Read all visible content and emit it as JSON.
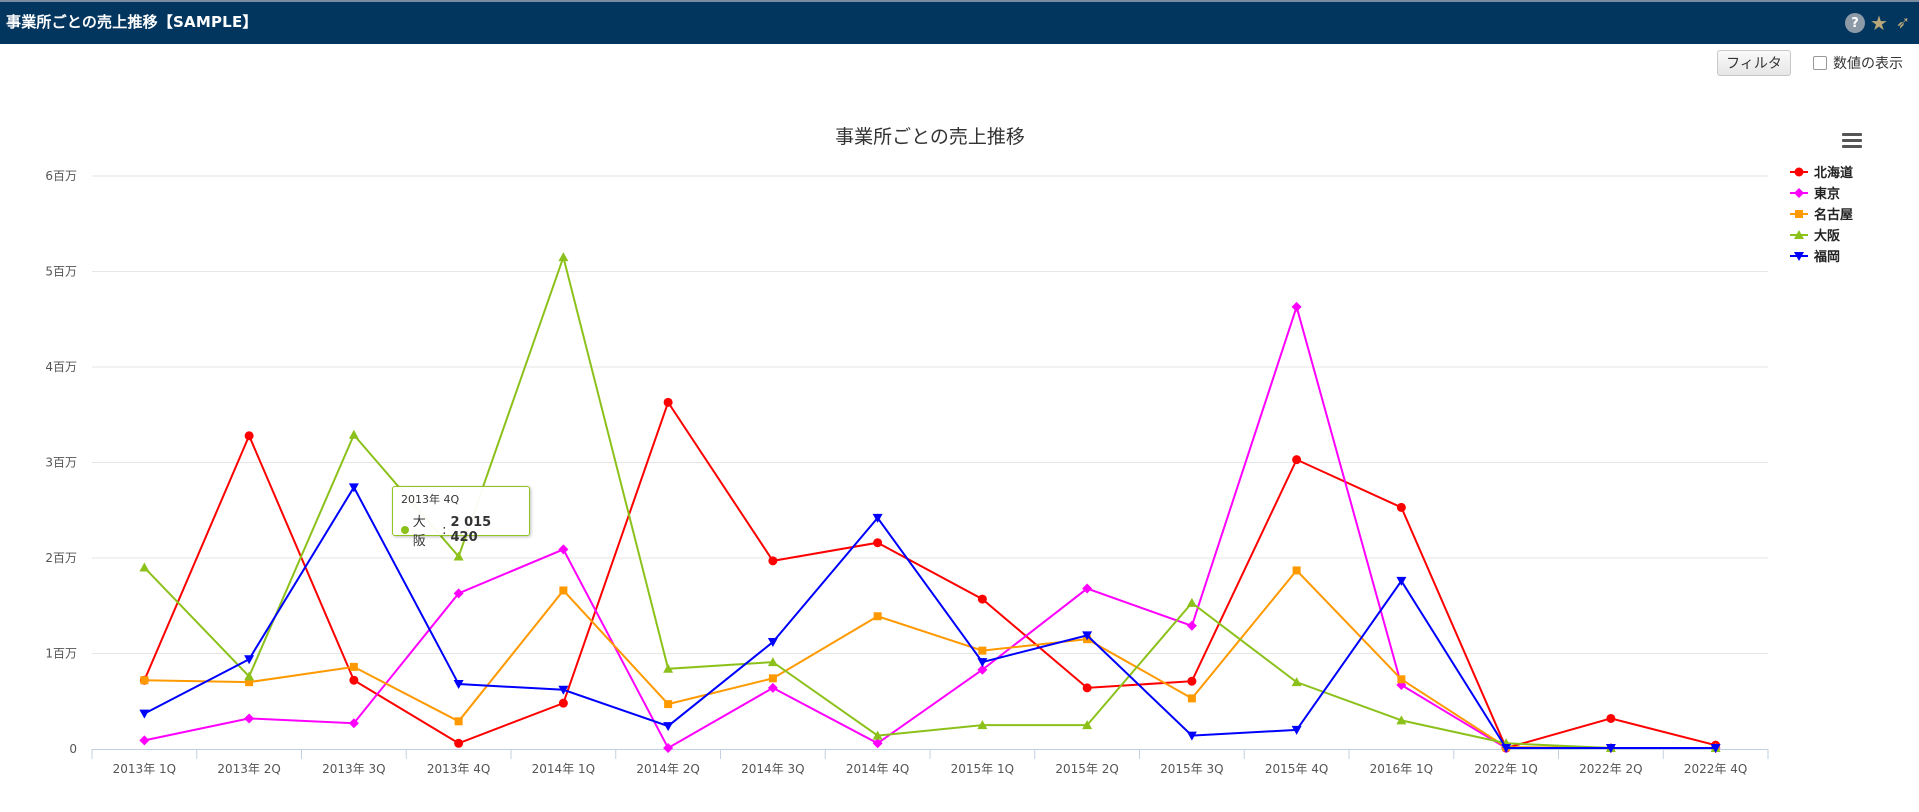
{
  "window": {
    "title": "事業所ごとの売上推移【SAMPLE】"
  },
  "toolbar": {
    "filter_label": "フィルタ",
    "show_values_label": "数値の表示",
    "show_values_checked": false
  },
  "icons": {
    "help": "help-icon",
    "favorite": "star-icon",
    "share": "bird-icon",
    "menu": "hamburger-menu-icon"
  },
  "colors": {
    "titlebar": "#03365f"
  },
  "tooltip": {
    "x": "2013年 4Q",
    "series": "大阪",
    "value": "2 015 420",
    "color": "#8cc11b"
  },
  "chart_data": {
    "type": "line",
    "title": "事業所ごとの売上推移",
    "xlabel": "",
    "ylabel": "",
    "ylim": [
      0,
      6000000
    ],
    "yticks": [
      {
        "value": 0,
        "label": "0"
      },
      {
        "value": 1000000,
        "label": "1百万"
      },
      {
        "value": 2000000,
        "label": "2百万"
      },
      {
        "value": 3000000,
        "label": "3百万"
      },
      {
        "value": 4000000,
        "label": "4百万"
      },
      {
        "value": 5000000,
        "label": "5百万"
      },
      {
        "value": 6000000,
        "label": "6百万"
      }
    ],
    "grid": true,
    "legend_position": "right",
    "categories": [
      "2013年 1Q",
      "2013年 2Q",
      "2013年 3Q",
      "2013年 4Q",
      "2014年 1Q",
      "2014年 2Q",
      "2014年 3Q",
      "2014年 4Q",
      "2015年 1Q",
      "2015年 2Q",
      "2015年 3Q",
      "2015年 4Q",
      "2016年 1Q",
      "2022年 1Q",
      "2022年 2Q",
      "2022年 4Q"
    ],
    "series": [
      {
        "name": "北海道",
        "color": "#ff0000",
        "marker": "circle",
        "values": [
          720000,
          3280000,
          720000,
          60000,
          480000,
          3630000,
          1970000,
          2160000,
          1570000,
          640000,
          710000,
          3030000,
          2530000,
          10000,
          320000,
          40000
        ]
      },
      {
        "name": "東京",
        "color": "#ff00ff",
        "marker": "diamond",
        "values": [
          90000,
          320000,
          270000,
          1630000,
          2090000,
          10000,
          640000,
          60000,
          830000,
          1680000,
          1290000,
          4630000,
          670000,
          10000,
          10000,
          10000
        ]
      },
      {
        "name": "名古屋",
        "color": "#ff9900",
        "marker": "square",
        "values": [
          720000,
          700000,
          860000,
          290000,
          1660000,
          470000,
          740000,
          1390000,
          1030000,
          1150000,
          530000,
          1870000,
          730000,
          20000,
          10000,
          10000
        ]
      },
      {
        "name": "大阪",
        "color": "#8cc11b",
        "marker": "triangle",
        "values": [
          1900000,
          760000,
          3290000,
          2015420,
          5150000,
          840000,
          910000,
          140000,
          250000,
          250000,
          1530000,
          700000,
          300000,
          60000,
          10000,
          10000
        ]
      },
      {
        "name": "福岡",
        "color": "#0000ff",
        "marker": "triangle-down",
        "values": [
          370000,
          940000,
          2740000,
          680000,
          620000,
          240000,
          1120000,
          2420000,
          910000,
          1190000,
          140000,
          200000,
          1760000,
          10000,
          10000,
          10000
        ]
      }
    ]
  }
}
